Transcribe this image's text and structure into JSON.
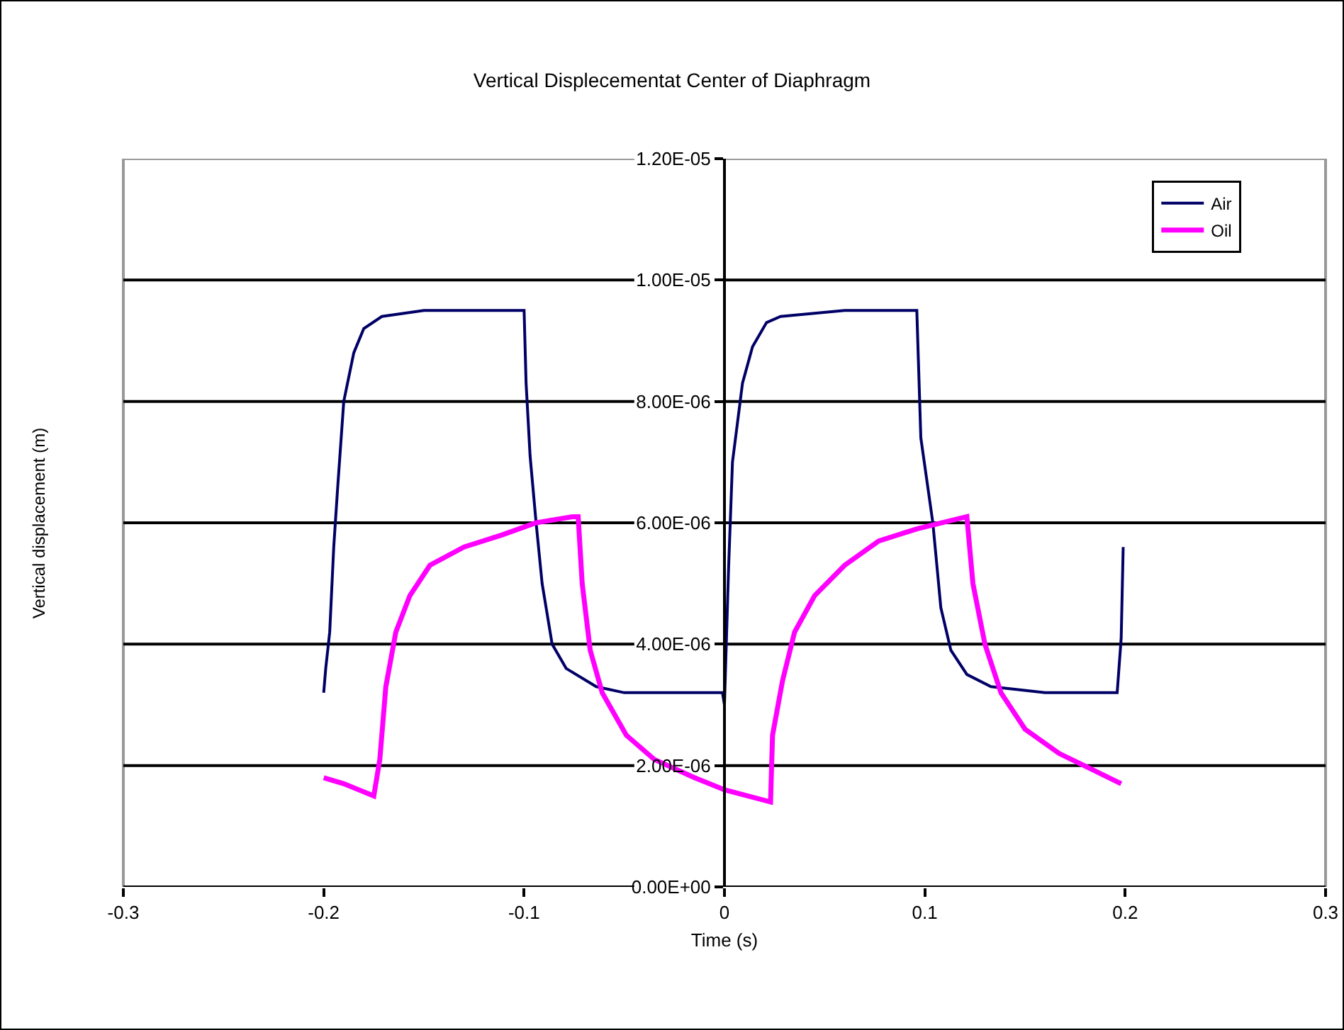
{
  "chart_data": {
    "type": "line",
    "title": "Vertical Displecementat Center of Diaphragm",
    "xlabel": "Time (s)",
    "ylabel": "Vertical displacement (m)",
    "xlim": [
      -0.3,
      0.3
    ],
    "xticks": [
      -0.3,
      -0.2,
      -0.1,
      0,
      0.1,
      0.2,
      0.3
    ],
    "ylim": [
      0,
      1.2e-05
    ],
    "yticks": [
      {
        "value": 0,
        "label": "0.00E+00"
      },
      {
        "value": 2e-06,
        "label": "2.00E-06"
      },
      {
        "value": 4e-06,
        "label": "4.00E-06"
      },
      {
        "value": 6e-06,
        "label": "6.00E-06"
      },
      {
        "value": 8e-06,
        "label": "8.00E-06"
      },
      {
        "value": 1e-05,
        "label": "1.00E-05"
      },
      {
        "value": 1.2e-05,
        "label": "1.20E-05"
      }
    ],
    "grid": "y",
    "legend": "top right",
    "marker": "none",
    "line_style": "solid",
    "series": [
      {
        "name": "Air",
        "color": "#000066",
        "x": [
          -0.2,
          -0.199,
          -0.197,
          -0.195,
          -0.193,
          -0.19,
          -0.185,
          -0.18,
          -0.171,
          -0.15,
          -0.12,
          -0.1,
          -0.099,
          -0.097,
          -0.094,
          -0.091,
          -0.086,
          -0.079,
          -0.064,
          -0.05,
          -0.02,
          -0.001,
          0,
          0.002,
          0.004,
          0.009,
          0.014,
          0.021,
          0.028,
          0.06,
          0.096,
          0.098,
          0.104,
          0.108,
          0.113,
          0.121,
          0.133,
          0.16,
          0.196,
          0.198,
          0.199
        ],
        "values": [
          3.2e-06,
          3.6e-06,
          4.2e-06,
          5.6e-06,
          6.6e-06,
          8e-06,
          8.8e-06,
          9.2e-06,
          9.4e-06,
          9.5e-06,
          9.5e-06,
          9.5e-06,
          8.3e-06,
          7.1e-06,
          6e-06,
          5e-06,
          4e-06,
          3.6e-06,
          3.3e-06,
          3.2e-06,
          3.2e-06,
          3.2e-06,
          3e-06,
          5.2e-06,
          7e-06,
          8.3e-06,
          8.9e-06,
          9.3e-06,
          9.4e-06,
          9.5e-06,
          9.5e-06,
          7.4e-06,
          6e-06,
          4.6e-06,
          3.9e-06,
          3.5e-06,
          3.3e-06,
          3.2e-06,
          3.2e-06,
          4.1e-06,
          5.6e-06
        ]
      },
      {
        "name": "Oil",
        "color": "#ff00ff",
        "x": [
          -0.2,
          -0.19,
          -0.175,
          -0.172,
          -0.169,
          -0.164,
          -0.157,
          -0.147,
          -0.13,
          -0.111,
          -0.094,
          -0.076,
          -0.073,
          -0.071,
          -0.067,
          -0.061,
          -0.049,
          -0.035,
          -0.015,
          0,
          0.023,
          0.024,
          0.029,
          0.035,
          0.045,
          0.06,
          0.077,
          0.096,
          0.121,
          0.124,
          0.13,
          0.138,
          0.15,
          0.167,
          0.198
        ],
        "values": [
          1.8e-06,
          1.7e-06,
          1.5e-06,
          2.1e-06,
          3.3e-06,
          4.2e-06,
          4.8e-06,
          5.3e-06,
          5.6e-06,
          5.8e-06,
          6e-06,
          6.1e-06,
          6.1e-06,
          5e-06,
          3.9e-06,
          3.2e-06,
          2.5e-06,
          2.1e-06,
          1.8e-06,
          1.6e-06,
          1.4e-06,
          2.5e-06,
          3.4e-06,
          4.2e-06,
          4.8e-06,
          5.3e-06,
          5.7e-06,
          5.9e-06,
          6.1e-06,
          5e-06,
          4e-06,
          3.2e-06,
          2.6e-06,
          2.2e-06,
          1.7e-06
        ]
      }
    ]
  }
}
